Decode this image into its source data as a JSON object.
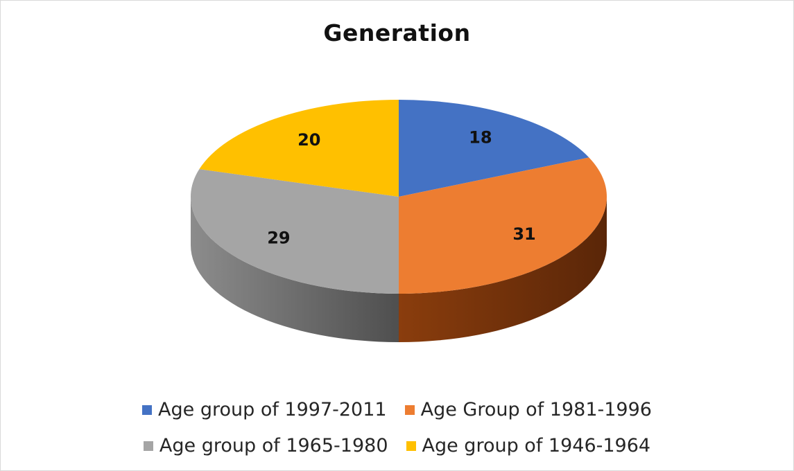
{
  "chart_data": {
    "type": "pie",
    "title": "Generation",
    "categories": [
      "Age group of 1997-2011",
      "Age Group of 1981-1996",
      "Age group of 1965-1980",
      "Age group of 1946-1964"
    ],
    "values": [
      18,
      31,
      29,
      20
    ],
    "colors": [
      "#4472C4",
      "#ED7D31",
      "#A5A5A5",
      "#FFC000"
    ],
    "legend_position": "bottom",
    "style": "3d"
  }
}
